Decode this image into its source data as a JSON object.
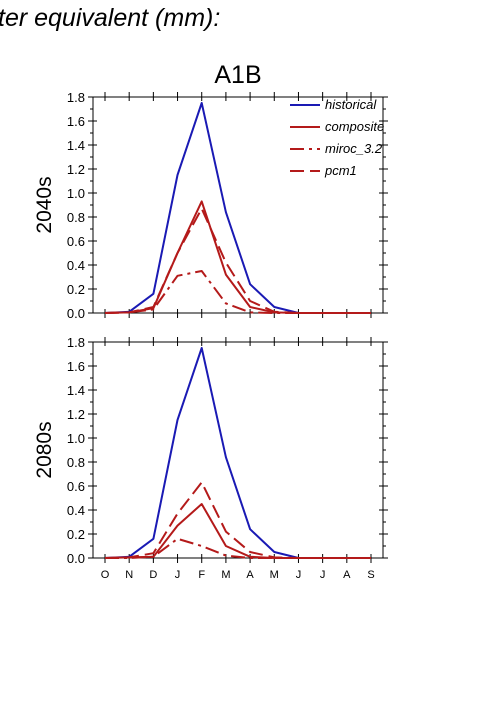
{
  "page": {
    "title": "ter equivalent (mm):"
  },
  "chart_data": [
    {
      "type": "line",
      "title": "A1B",
      "ylabel": "2040s",
      "xlabel": "",
      "categories": [
        "O",
        "N",
        "D",
        "J",
        "F",
        "M",
        "A",
        "M",
        "J",
        "J",
        "A",
        "S"
      ],
      "ylim": [
        0,
        1.8
      ],
      "yticks": [
        "0.0",
        "0.2",
        "0.4",
        "0.6",
        "0.8",
        "1.0",
        "1.2",
        "1.4",
        "1.6",
        "1.8"
      ],
      "legend": {
        "position": "top-right"
      },
      "grid": false,
      "series": [
        {
          "name": "historical",
          "color": "#1a1ab4",
          "dash": "solid",
          "values": [
            0,
            0.01,
            0.16,
            1.15,
            1.75,
            0.84,
            0.24,
            0.05,
            0,
            0,
            0,
            0
          ]
        },
        {
          "name": "composite",
          "color": "#b41a1a",
          "dash": "solid",
          "values": [
            0,
            0.005,
            0.04,
            0.5,
            0.93,
            0.32,
            0.05,
            0.005,
            0,
            0,
            0,
            0
          ]
        },
        {
          "name": "miroc_3.2",
          "color": "#b41a1a",
          "dash": "dashdot",
          "values": [
            0,
            0.005,
            0.03,
            0.31,
            0.35,
            0.08,
            0.005,
            0,
            0,
            0,
            0,
            0
          ]
        },
        {
          "name": "pcm1",
          "color": "#b41a1a",
          "dash": "dashed",
          "values": [
            0,
            0.005,
            0.05,
            0.5,
            0.87,
            0.42,
            0.1,
            0.01,
            0,
            0,
            0,
            0
          ]
        }
      ]
    },
    {
      "type": "line",
      "title": "",
      "ylabel": "2080s",
      "xlabel": "",
      "categories": [
        "O",
        "N",
        "D",
        "J",
        "F",
        "M",
        "A",
        "M",
        "J",
        "J",
        "A",
        "S"
      ],
      "ylim": [
        0,
        1.8
      ],
      "yticks": [
        "0.0",
        "0.2",
        "0.4",
        "0.6",
        "0.8",
        "1.0",
        "1.2",
        "1.4",
        "1.6",
        "1.8"
      ],
      "grid": false,
      "series": [
        {
          "name": "historical",
          "color": "#1a1ab4",
          "dash": "solid",
          "values": [
            0,
            0.01,
            0.16,
            1.15,
            1.75,
            0.84,
            0.24,
            0.05,
            0,
            0,
            0,
            0
          ]
        },
        {
          "name": "composite",
          "color": "#b41a1a",
          "dash": "solid",
          "values": [
            0,
            0.005,
            0.01,
            0.27,
            0.45,
            0.1,
            0.01,
            0,
            0,
            0,
            0,
            0
          ]
        },
        {
          "name": "miroc_3.2",
          "color": "#b41a1a",
          "dash": "dashdot",
          "values": [
            0,
            0,
            0.01,
            0.16,
            0.1,
            0.02,
            0,
            0,
            0,
            0,
            0,
            0
          ]
        },
        {
          "name": "pcm1",
          "color": "#b41a1a",
          "dash": "dashed",
          "values": [
            0,
            0.005,
            0.04,
            0.37,
            0.63,
            0.22,
            0.05,
            0.005,
            0,
            0,
            0,
            0
          ]
        }
      ]
    }
  ]
}
